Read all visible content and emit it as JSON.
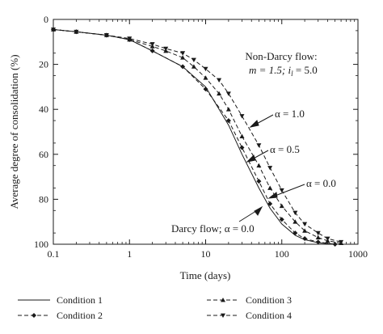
{
  "chart_data": {
    "type": "line",
    "xlabel": "Time (days)",
    "ylabel": "Average degree of consolidation (%)",
    "xscale": "log",
    "xlim": [
      0.1,
      1000
    ],
    "ylim": [
      0,
      100
    ],
    "y_inverted": true,
    "x_ticks": [
      "0.1",
      "1",
      "10",
      "100",
      "1000"
    ],
    "y_ticks": [
      "0",
      "20",
      "40",
      "60",
      "80",
      "100"
    ],
    "grid": false,
    "legend_position": "bottom",
    "annotations": {
      "header_line1": "Non-Darcy flow:",
      "header_line2": "m = 1.5; i",
      "header_sub": "l",
      "header_line2_end": " = 5.0",
      "alpha_10": "α = 1.0",
      "alpha_05": "α = 0.5",
      "alpha_00": "α = 0.0",
      "darcy": "Darcy flow; α = 0.0"
    },
    "series": [
      {
        "name": "Condition 1",
        "style": "solid",
        "marker": "none",
        "x": [
          0.1,
          0.2,
          0.5,
          1,
          2,
          5,
          10,
          20,
          30,
          50,
          70,
          100,
          150,
          200,
          300,
          500
        ],
        "y": [
          4.5,
          5.5,
          7,
          9,
          14,
          21,
          30,
          47,
          60,
          75,
          84,
          91,
          96,
          98,
          99.3,
          100
        ]
      },
      {
        "name": "Condition 2",
        "style": "dashed",
        "marker": "diamond",
        "x": [
          0.1,
          0.2,
          0.5,
          1,
          2,
          5,
          10,
          20,
          30,
          50,
          70,
          100,
          150,
          200,
          300,
          500
        ],
        "y": [
          4.5,
          5.5,
          7,
          9,
          14,
          21,
          31,
          45,
          57,
          72,
          82,
          89,
          95,
          97.5,
          99,
          100
        ]
      },
      {
        "name": "Condition 3",
        "style": "dashed",
        "marker": "triangle-up",
        "x": [
          0.1,
          0.2,
          0.5,
          1,
          2,
          3,
          5,
          7,
          10,
          15,
          20,
          30,
          50,
          70,
          100,
          150,
          200,
          300,
          400,
          600
        ],
        "y": [
          4.5,
          5.5,
          7,
          9,
          12,
          14,
          17,
          21,
          26,
          33,
          40,
          52,
          65,
          75,
          83,
          90,
          94,
          97,
          98.5,
          99.5
        ]
      },
      {
        "name": "Condition 4",
        "style": "dashed",
        "marker": "triangle-down",
        "x": [
          0.1,
          0.2,
          0.5,
          1,
          2,
          3,
          5,
          7,
          10,
          15,
          20,
          30,
          50,
          70,
          100,
          150,
          200,
          300,
          400,
          600
        ],
        "y": [
          4.5,
          5.5,
          7,
          8.5,
          11,
          13,
          15,
          18,
          22,
          27,
          33,
          43,
          56,
          66,
          76,
          86,
          91,
          95,
          97.5,
          99
        ]
      }
    ]
  }
}
